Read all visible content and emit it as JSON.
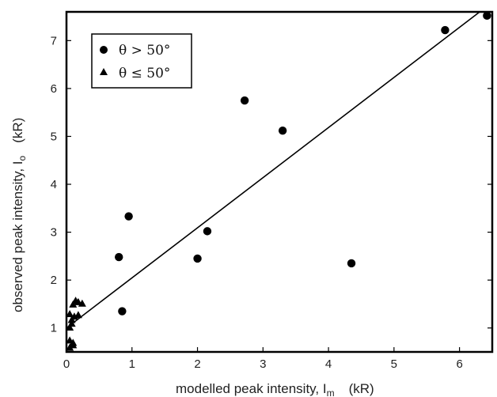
{
  "chart_data": {
    "type": "scatter",
    "xlabel": "modelled peak intensity, I",
    "xlabel_sub": "m",
    "xlabel_unit": "(kR)",
    "ylabel": "observed peak intensity, I",
    "ylabel_sub": "o",
    "ylabel_unit": "(kR)",
    "xlim": [
      0,
      6.5
    ],
    "ylim": [
      0.5,
      7.6
    ],
    "xticks": [
      "0",
      "1",
      "2",
      "3",
      "4",
      "5",
      "6"
    ],
    "yticks": [
      "1",
      "2",
      "3",
      "4",
      "5",
      "6",
      "7"
    ],
    "grid": false,
    "legend_position": "top-left",
    "series": [
      {
        "name": "θ  > 50°",
        "marker": "circle",
        "points": [
          [
            0.8,
            2.48
          ],
          [
            0.85,
            1.35
          ],
          [
            0.95,
            3.33
          ],
          [
            2.0,
            2.45
          ],
          [
            2.15,
            3.02
          ],
          [
            2.72,
            5.75
          ],
          [
            3.3,
            5.12
          ],
          [
            4.35,
            2.35
          ],
          [
            5.78,
            7.22
          ],
          [
            6.42,
            7.52
          ]
        ]
      },
      {
        "name": "θ  ≤  50°",
        "marker": "triangle",
        "points": [
          [
            0.05,
            0.6
          ],
          [
            0.1,
            0.65
          ],
          [
            0.05,
            0.75
          ],
          [
            0.1,
            0.7
          ],
          [
            0.05,
            1.02
          ],
          [
            0.08,
            1.1
          ],
          [
            0.12,
            1.25
          ],
          [
            0.05,
            1.3
          ],
          [
            0.18,
            1.28
          ],
          [
            0.1,
            1.5
          ],
          [
            0.14,
            1.58
          ],
          [
            0.18,
            1.55
          ],
          [
            0.24,
            1.52
          ],
          [
            0.08,
            1.18
          ]
        ]
      }
    ],
    "fit_line": {
      "x": [
        0,
        6.5
      ],
      "y": [
        1.0,
        7.8
      ]
    }
  }
}
